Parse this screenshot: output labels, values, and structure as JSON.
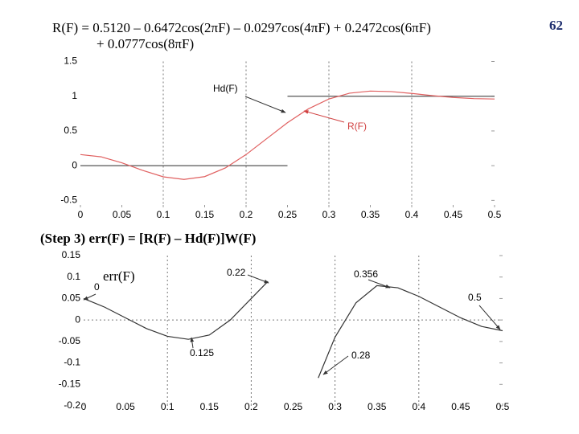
{
  "slide": {
    "equation_line1": "R(F) = 0.5120 – 0.6472cos(2πF) – 0.0297cos(4πF) + 0.2472cos(6πF)",
    "equation_line2": "+ 0.0777cos(8πF)",
    "step_text": "(Step 3) err(F) = [R(F) – Hd(F)]W(F)",
    "page_number": "62"
  },
  "chart_data": [
    {
      "type": "line",
      "xlim": [
        0,
        0.5
      ],
      "xticks": [
        0,
        0.05,
        0.1,
        0.15,
        0.2,
        0.25,
        0.3,
        0.35,
        0.4,
        0.45,
        0.5
      ],
      "ylim": [
        -0.6,
        1.5
      ],
      "yticks": [
        -0.5,
        0,
        0.5,
        1,
        1.5
      ],
      "xgrid": [
        0.1,
        0.2,
        0.3,
        0.4
      ],
      "series": [
        {
          "name": "Hd(F)",
          "color": "#555555",
          "x": [
            0,
            0.25,
            0.25,
            0.25,
            0.5
          ],
          "values": [
            0,
            0,
            null,
            1,
            1
          ]
        },
        {
          "name": "R(F)",
          "color": "#e06060",
          "x": [
            0,
            0.025,
            0.05,
            0.075,
            0.1,
            0.125,
            0.15,
            0.175,
            0.2,
            0.225,
            0.25,
            0.275,
            0.3,
            0.325,
            0.35,
            0.375,
            0.4,
            0.425,
            0.45,
            0.475,
            0.5
          ],
          "values": [
            0.16,
            0.1277,
            0.0418,
            -0.0675,
            -0.1601,
            -0.1981,
            -0.1572,
            -0.0325,
            0.16,
            0.3897,
            0.6194,
            0.8166,
            0.96,
            1.0435,
            1.0738,
            1.0667,
            1.0399,
            1.0086,
            0.9822,
            0.9656,
            0.96
          ]
        }
      ],
      "annotations": [
        "Hd(F)",
        "R(F)"
      ]
    },
    {
      "type": "line",
      "xlim": [
        0,
        0.5
      ],
      "xticks": [
        0,
        0.05,
        0.1,
        0.15,
        0.2,
        0.25,
        0.3,
        0.35,
        0.4,
        0.45,
        0.5
      ],
      "ylim": [
        -0.2,
        0.15
      ],
      "yticks": [
        -0.2,
        -0.15,
        -0.1,
        -0.05,
        0,
        0.05,
        0.1,
        0.15
      ],
      "xgrid": [
        0.1,
        0.2,
        0.3,
        0.4
      ],
      "zero_line": true,
      "series": [
        {
          "name": "err(F)",
          "color": "#333333",
          "x": [
            0,
            0.025,
            0.05,
            0.075,
            0.1,
            0.125,
            0.15,
            0.175,
            0.2,
            0.22,
            0.25,
            0.28,
            0.3,
            0.325,
            0.35,
            0.375,
            0.4,
            0.425,
            0.45,
            0.475,
            0.5
          ],
          "values": [
            0.05,
            0.03,
            0.005,
            -0.02,
            -0.038,
            -0.045,
            -0.035,
            0.0,
            0.05,
            0.09,
            null,
            -0.135,
            -0.04,
            0.04,
            0.08,
            0.075,
            0.055,
            0.03,
            0.005,
            -0.015,
            -0.025
          ]
        }
      ],
      "annotations": [
        "err(F)",
        "0",
        "0.22",
        "0.125",
        "0.356",
        "0.28",
        "0.5"
      ]
    }
  ]
}
